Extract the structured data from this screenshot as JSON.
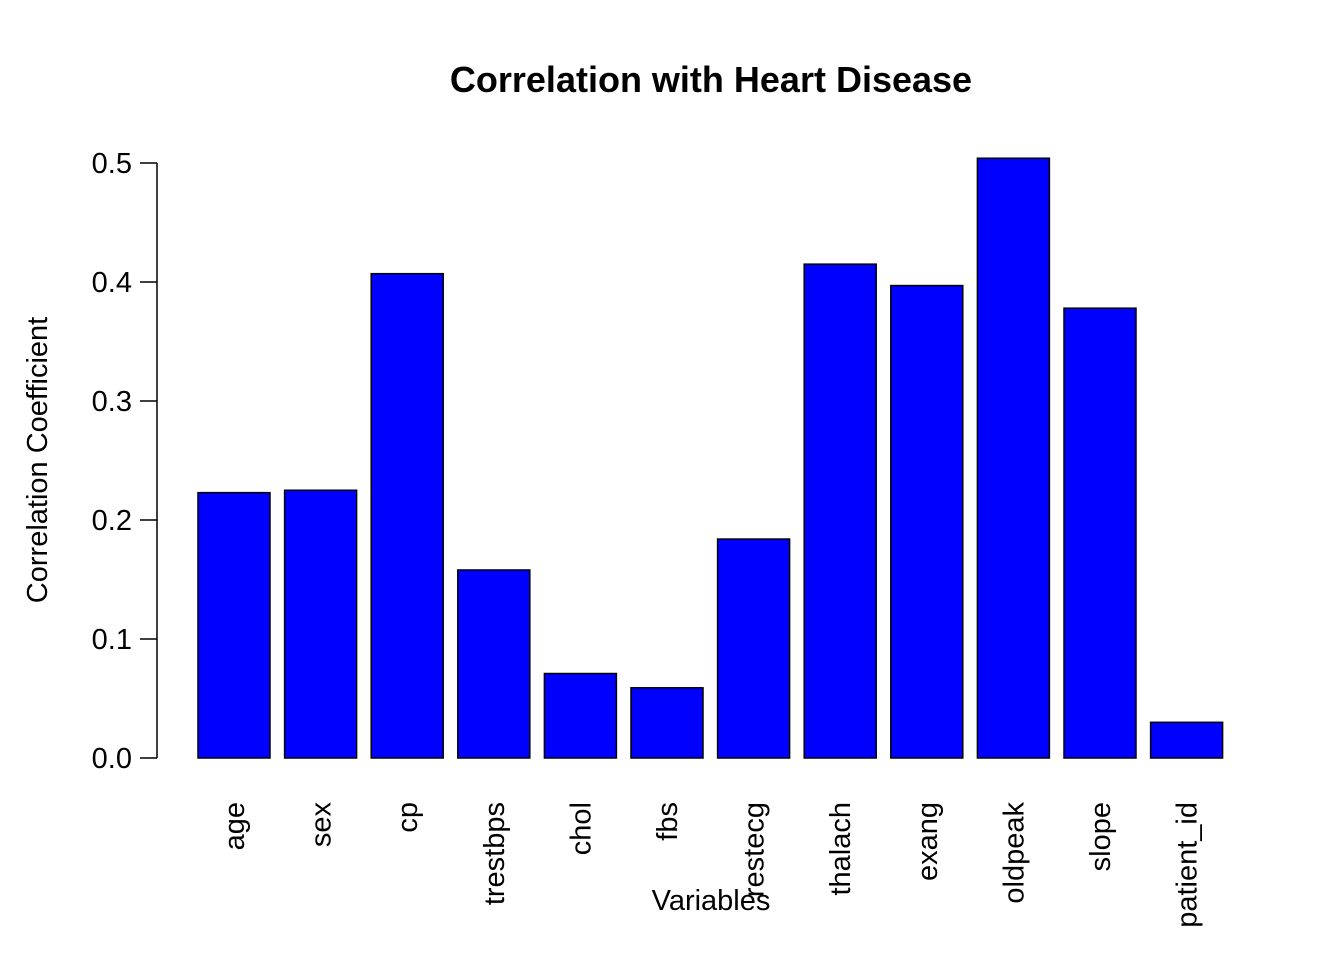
{
  "chart_data": {
    "type": "bar",
    "title": "Correlation with Heart Disease",
    "xlabel": "Variables",
    "ylabel": "Correlation Coefficient",
    "categories": [
      "age",
      "sex",
      "cp",
      "trestbps",
      "chol",
      "fbs",
      "restecg",
      "thalach",
      "exang",
      "oldpeak",
      "slope",
      "patient_id"
    ],
    "values": [
      0.223,
      0.225,
      0.407,
      0.158,
      0.071,
      0.059,
      0.184,
      0.415,
      0.397,
      0.504,
      0.378,
      0.03
    ],
    "yticks": [
      "0.0",
      "0.1",
      "0.2",
      "0.3",
      "0.4",
      "0.5"
    ],
    "ylim": [
      0,
      0.5
    ],
    "bar_color": "#0000ff",
    "grid": false,
    "legend": "none"
  }
}
